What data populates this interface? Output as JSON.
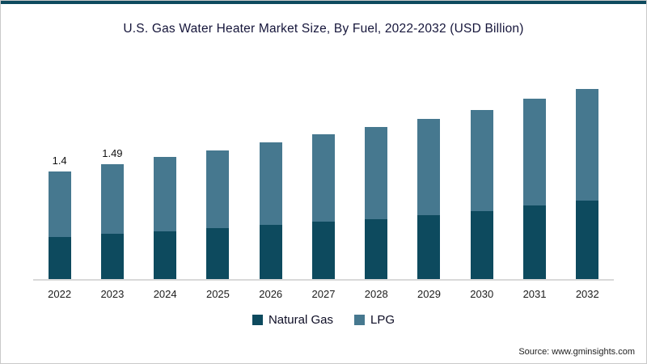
{
  "chart_data": {
    "type": "bar",
    "stacked": true,
    "title": "U.S. Gas Water Heater Market Size, By Fuel, 2022-2032 (USD Billion)",
    "categories": [
      "2022",
      "2023",
      "2024",
      "2025",
      "2026",
      "2027",
      "2028",
      "2029",
      "2030",
      "2031",
      "2032"
    ],
    "series": [
      {
        "name": "Natural Gas",
        "color": "#0d4a5e",
        "values": [
          0.55,
          0.59,
          0.62,
          0.66,
          0.7,
          0.74,
          0.78,
          0.83,
          0.88,
          0.95,
          1.02
        ]
      },
      {
        "name": "LPG",
        "color": "#46788f",
        "values": [
          0.85,
          0.9,
          0.96,
          1.01,
          1.07,
          1.13,
          1.19,
          1.25,
          1.31,
          1.38,
          1.45
        ]
      }
    ],
    "totals": [
      1.4,
      1.49,
      1.58,
      1.67,
      1.77,
      1.87,
      1.97,
      2.08,
      2.19,
      2.33,
      2.47
    ],
    "bar_labels": [
      "1.4",
      "1.49",
      "",
      "",
      "",
      "",
      "",
      "",
      "",
      "",
      ""
    ],
    "xlabel": "",
    "ylabel": "",
    "ylim": [
      0,
      2.6
    ],
    "grid": false,
    "legend_position": "bottom"
  },
  "source": "Source: www.gminsights.com",
  "colors": {
    "accent_top": "#0d4a5e",
    "axis_line": "#d9d9d9",
    "title_text": "#15153a"
  }
}
